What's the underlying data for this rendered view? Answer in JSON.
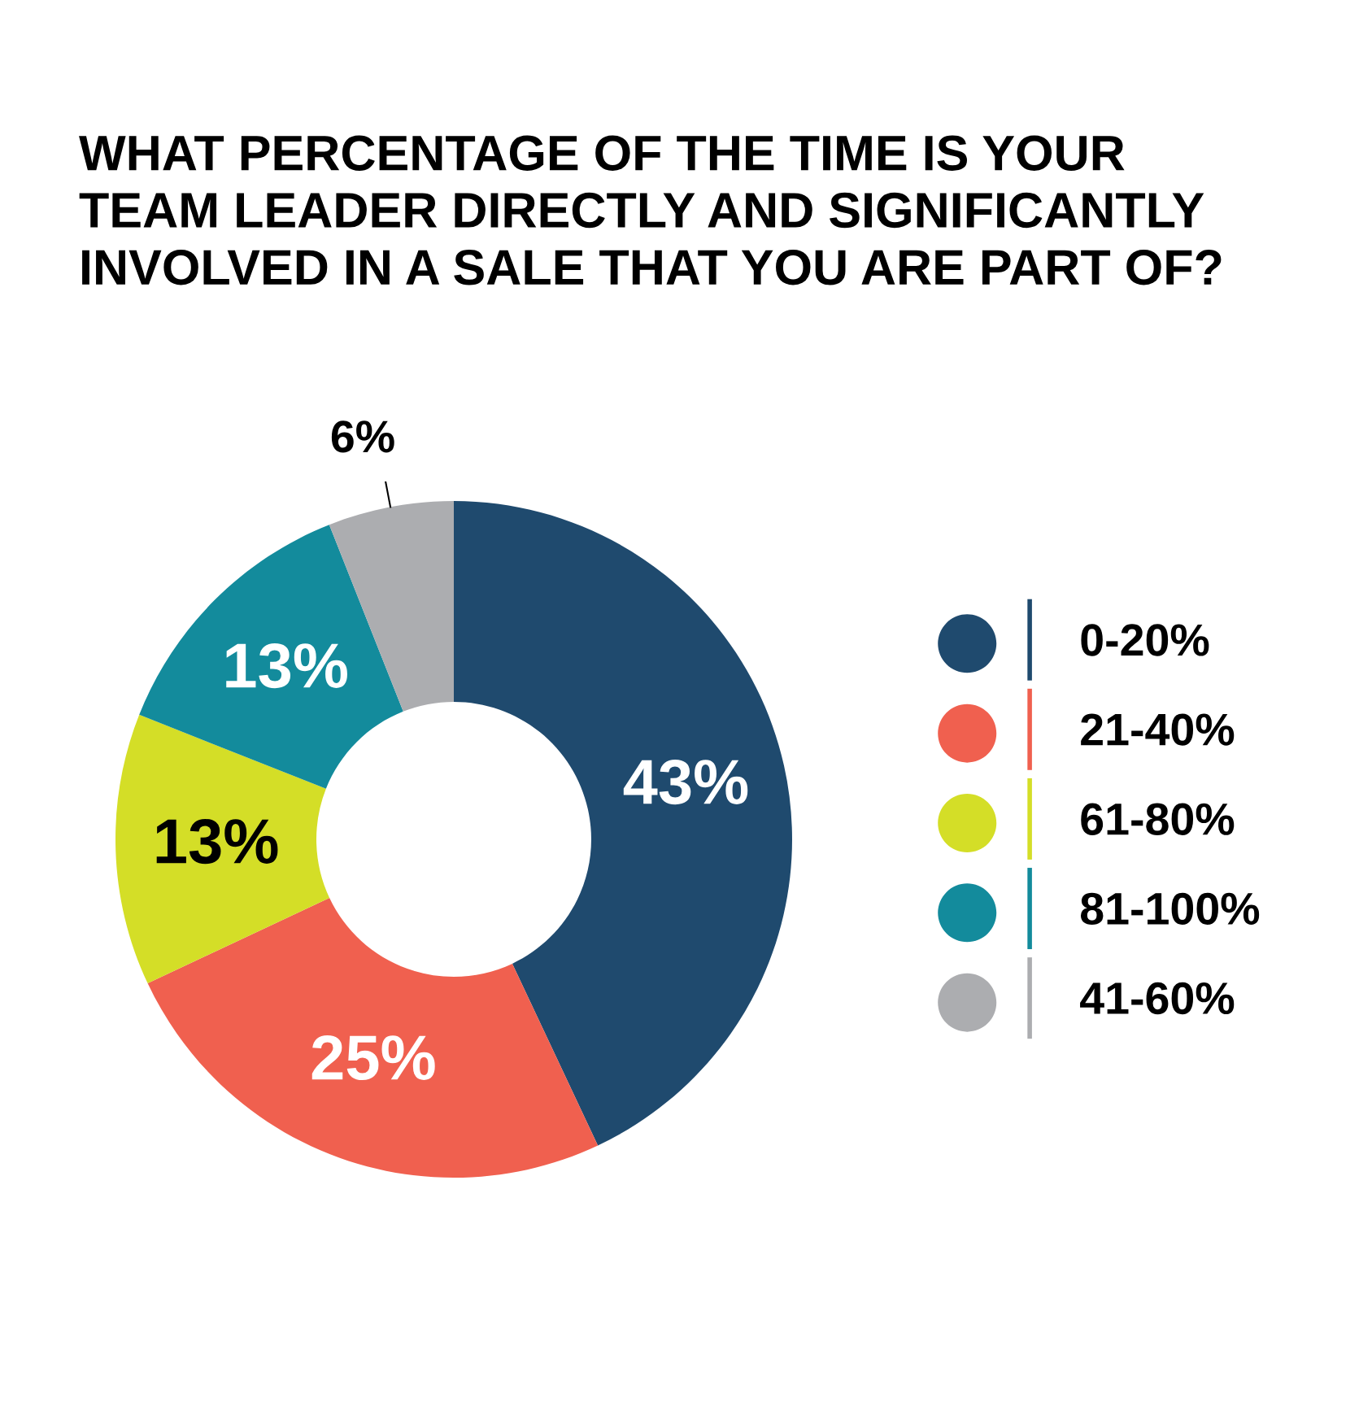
{
  "chart_data": {
    "type": "donut",
    "title": "WHAT PERCENTAGE OF THE TIME IS YOUR\nTEAM LEADER DIRECTLY AND SIGNIFICANTLY\nINVOLVED IN A SALE THAT YOU ARE PART OF?",
    "categories": [
      "0-20%",
      "21-40%",
      "61-80%",
      "81-100%",
      "41-60%"
    ],
    "values": [
      43,
      25,
      13,
      13,
      6
    ],
    "colors": [
      "#1f4a6e",
      "#f0604f",
      "#d4de27",
      "#138b9c",
      "#acadb0"
    ],
    "value_labels": [
      "43%",
      "25%",
      "13%",
      "13%",
      "6%"
    ],
    "legend": "right"
  }
}
